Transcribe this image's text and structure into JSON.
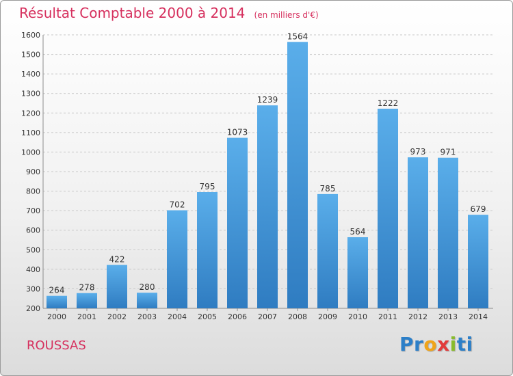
{
  "title": "Résultat Comptable 2000 à 2014",
  "subtitle": "(en milliers d'€)",
  "location": "ROUSSAS",
  "logo": {
    "p1": "Pr",
    "p2": "o",
    "p3": "x",
    "p4": "i",
    "p5": "ti"
  },
  "colors": {
    "title": "#d6305e",
    "bar_top": "#5aaeea",
    "bar_bottom": "#2f7cc1"
  },
  "chart_data": {
    "type": "bar",
    "title": "Résultat Comptable 2000 à 2014",
    "subtitle": "(en milliers d'€)",
    "categories": [
      "2000",
      "2001",
      "2002",
      "2003",
      "2004",
      "2005",
      "2006",
      "2007",
      "2008",
      "2009",
      "2010",
      "2011",
      "2012",
      "2013",
      "2014"
    ],
    "values": [
      264,
      278,
      422,
      280,
      702,
      795,
      1073,
      1239,
      1564,
      785,
      564,
      1222,
      973,
      971,
      679
    ],
    "ylim": [
      200,
      1600
    ],
    "yticks": [
      200,
      300,
      400,
      500,
      600,
      700,
      800,
      900,
      1000,
      1100,
      1200,
      1300,
      1400,
      1500,
      1600
    ],
    "grid": true,
    "data_labels": true
  }
}
